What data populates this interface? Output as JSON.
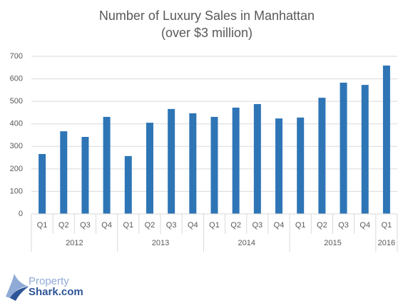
{
  "chart_data": {
    "type": "bar",
    "title": "Number of Luxury Sales in Manhattan",
    "subtitle": "(over $3 million)",
    "groups": [
      {
        "label": "2012",
        "categories": [
          "Q1",
          "Q2",
          "Q3",
          "Q4"
        ]
      },
      {
        "label": "2013",
        "categories": [
          "Q1",
          "Q2",
          "Q3",
          "Q4"
        ]
      },
      {
        "label": "2014",
        "categories": [
          "Q1",
          "Q2",
          "Q3",
          "Q4"
        ]
      },
      {
        "label": "2015",
        "categories": [
          "Q1",
          "Q2",
          "Q3",
          "Q4"
        ]
      },
      {
        "label": "2016",
        "categories": [
          "Q1"
        ]
      }
    ],
    "values": [
      266,
      367,
      342,
      431,
      257,
      405,
      466,
      447,
      431,
      472,
      488,
      424,
      428,
      516,
      583,
      573,
      659
    ],
    "color": "#2e75b6",
    "ylim": [
      0,
      700
    ],
    "yticks": [
      0,
      100,
      200,
      300,
      400,
      500,
      600,
      700
    ],
    "grid": true
  },
  "logo": {
    "line1": "Property",
    "line2": "Shark.com"
  }
}
